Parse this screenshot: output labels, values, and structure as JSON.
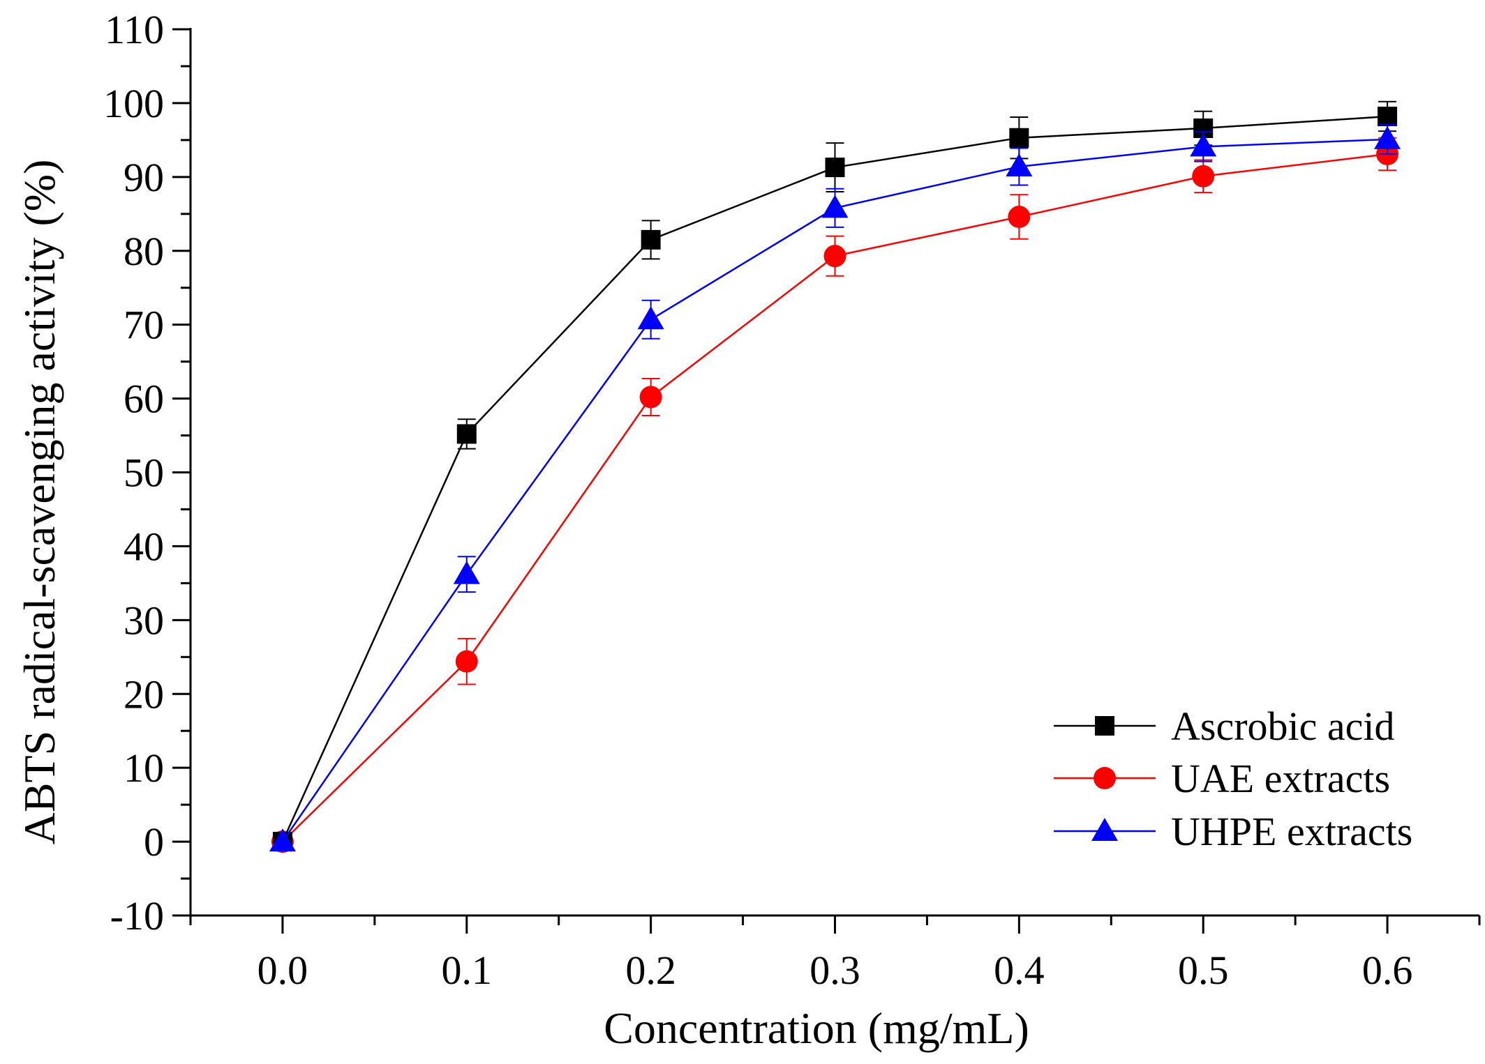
{
  "chart_data": {
    "type": "line",
    "title": "",
    "xlabel": "Concentration (mg/mL)",
    "ylabel": "ABTS radical-scavenging activity (%)",
    "xlim": [
      -0.05,
      0.65
    ],
    "ylim": [
      -10,
      110
    ],
    "xticks": [
      "0.0",
      "0.1",
      "0.2",
      "0.3",
      "0.4",
      "0.5",
      "0.6"
    ],
    "xtick_values": [
      0.0,
      0.1,
      0.2,
      0.3,
      0.4,
      0.5,
      0.6
    ],
    "yticks": [
      "-10",
      "0",
      "10",
      "20",
      "30",
      "40",
      "50",
      "60",
      "70",
      "80",
      "90",
      "100",
      "110"
    ],
    "ytick_values": [
      -10,
      0,
      10,
      20,
      30,
      40,
      50,
      60,
      70,
      80,
      90,
      100,
      110
    ],
    "x": [
      0.0,
      0.1,
      0.2,
      0.3,
      0.4,
      0.5,
      0.6
    ],
    "legend_position": "bottom-right",
    "grid": false,
    "series": [
      {
        "name": "Ascrobic acid",
        "color": "#000000",
        "marker": "square",
        "values": [
          0,
          55.2,
          81.5,
          91.3,
          95.3,
          96.6,
          98.2
        ],
        "errors": [
          0,
          2.0,
          2.6,
          3.3,
          2.8,
          2.3,
          2.0
        ]
      },
      {
        "name": "UAE extracts",
        "color": "#ff0000",
        "marker": "circle",
        "values": [
          0,
          24.4,
          60.2,
          79.3,
          84.6,
          90.1,
          93.1
        ],
        "errors": [
          0,
          3.1,
          2.5,
          2.7,
          3.0,
          2.2,
          2.2
        ]
      },
      {
        "name": "UHPE extracts",
        "color": "#0000ff",
        "marker": "triangle",
        "values": [
          0,
          36.2,
          70.7,
          85.8,
          91.4,
          94.1,
          95.1
        ],
        "errors": [
          0,
          2.4,
          2.6,
          2.6,
          2.5,
          2.0,
          2.0
        ]
      }
    ]
  }
}
